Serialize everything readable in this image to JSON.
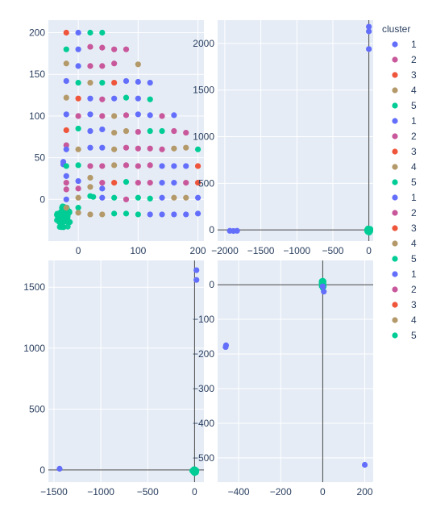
{
  "palette": {
    "1": "#636efa",
    "2": "#c8589b",
    "3": "#ef553b",
    "4": "#b49a6a",
    "5": "#00cc96"
  },
  "plot_bg": "#e5ecf6",
  "legend": {
    "title": "cluster",
    "items": [
      {
        "label": "1",
        "cluster": "1"
      },
      {
        "label": "2",
        "cluster": "2"
      },
      {
        "label": "3",
        "cluster": "3"
      },
      {
        "label": "4",
        "cluster": "4"
      },
      {
        "label": "5",
        "cluster": "5"
      },
      {
        "label": "1",
        "cluster": "1"
      },
      {
        "label": "2",
        "cluster": "2"
      },
      {
        "label": "3",
        "cluster": "3"
      },
      {
        "label": "4",
        "cluster": "4"
      },
      {
        "label": "5",
        "cluster": "5"
      },
      {
        "label": "1",
        "cluster": "1"
      },
      {
        "label": "2",
        "cluster": "2"
      },
      {
        "label": "3",
        "cluster": "3"
      },
      {
        "label": "4",
        "cluster": "4"
      },
      {
        "label": "5",
        "cluster": "5"
      },
      {
        "label": "1",
        "cluster": "1"
      },
      {
        "label": "2",
        "cluster": "2"
      },
      {
        "label": "3",
        "cluster": "3"
      },
      {
        "label": "4",
        "cluster": "4"
      },
      {
        "label": "5",
        "cluster": "5"
      }
    ]
  },
  "chart_data": [
    {
      "type": "scatter",
      "xlim": [
        -50,
        210
      ],
      "ylim": [
        -50,
        215
      ],
      "xticks": [
        0,
        100,
        200
      ],
      "yticks": [
        0,
        50,
        100,
        150,
        200
      ],
      "grid": true,
      "points": [
        [
          -20,
          200,
          3
        ],
        [
          0,
          200,
          1
        ],
        [
          20,
          200,
          5
        ],
        [
          40,
          200,
          5
        ],
        [
          -20,
          180,
          5
        ],
        [
          0,
          180,
          1
        ],
        [
          20,
          183,
          2
        ],
        [
          40,
          182,
          2
        ],
        [
          60,
          180,
          2
        ],
        [
          80,
          180,
          2
        ],
        [
          -20,
          163,
          4
        ],
        [
          0,
          160,
          1
        ],
        [
          20,
          160,
          2
        ],
        [
          40,
          160,
          2
        ],
        [
          60,
          163,
          2
        ],
        [
          100,
          162,
          4
        ],
        [
          -20,
          142,
          1
        ],
        [
          0,
          140,
          5
        ],
        [
          20,
          140,
          4
        ],
        [
          40,
          140,
          5
        ],
        [
          60,
          140,
          3
        ],
        [
          80,
          142,
          1
        ],
        [
          100,
          141,
          1
        ],
        [
          120,
          140,
          1
        ],
        [
          -20,
          122,
          4
        ],
        [
          0,
          121,
          3
        ],
        [
          20,
          121,
          1
        ],
        [
          40,
          120,
          2
        ],
        [
          60,
          121,
          1
        ],
        [
          80,
          122,
          5
        ],
        [
          100,
          121,
          1
        ],
        [
          120,
          120,
          5
        ],
        [
          -20,
          102,
          1
        ],
        [
          0,
          100,
          2
        ],
        [
          20,
          102,
          1
        ],
        [
          40,
          100,
          2
        ],
        [
          60,
          100,
          4
        ],
        [
          80,
          101,
          2
        ],
        [
          100,
          102,
          1
        ],
        [
          120,
          101,
          1
        ],
        [
          140,
          100,
          2
        ],
        [
          160,
          101,
          1
        ],
        [
          -20,
          83,
          3
        ],
        [
          0,
          85,
          5
        ],
        [
          20,
          82,
          1
        ],
        [
          40,
          84,
          1
        ],
        [
          60,
          80,
          4
        ],
        [
          80,
          82,
          4
        ],
        [
          100,
          81,
          2
        ],
        [
          120,
          82,
          5
        ],
        [
          140,
          82,
          5
        ],
        [
          160,
          82,
          2
        ],
        [
          180,
          80,
          2
        ],
        [
          -20,
          65,
          2
        ],
        [
          -20,
          60,
          1
        ],
        [
          0,
          60,
          4
        ],
        [
          20,
          62,
          1
        ],
        [
          40,
          62,
          1
        ],
        [
          60,
          60,
          4
        ],
        [
          80,
          62,
          2
        ],
        [
          100,
          61,
          2
        ],
        [
          120,
          61,
          2
        ],
        [
          140,
          60,
          2
        ],
        [
          160,
          61,
          4
        ],
        [
          180,
          62,
          4
        ],
        [
          200,
          60,
          5
        ],
        [
          -25,
          45,
          1
        ],
        [
          -25,
          42,
          1
        ],
        [
          -20,
          40,
          5
        ],
        [
          0,
          41,
          5
        ],
        [
          20,
          40,
          2
        ],
        [
          40,
          40,
          2
        ],
        [
          60,
          41,
          4
        ],
        [
          80,
          41,
          2
        ],
        [
          100,
          40,
          2
        ],
        [
          120,
          41,
          2
        ],
        [
          140,
          40,
          1
        ],
        [
          160,
          40,
          1
        ],
        [
          180,
          40,
          1
        ],
        [
          200,
          40,
          3
        ],
        [
          -20,
          28,
          1
        ],
        [
          -20,
          20,
          2
        ],
        [
          0,
          22,
          1
        ],
        [
          20,
          26,
          4
        ],
        [
          40,
          20,
          2
        ],
        [
          60,
          20,
          3
        ],
        [
          80,
          21,
          5
        ],
        [
          100,
          20,
          2
        ],
        [
          120,
          20,
          2
        ],
        [
          140,
          20,
          1
        ],
        [
          160,
          20,
          1
        ],
        [
          180,
          20,
          2
        ],
        [
          200,
          20,
          3
        ],
        [
          -20,
          12,
          2
        ],
        [
          0,
          13,
          2
        ],
        [
          20,
          15,
          4
        ],
        [
          40,
          13,
          1
        ],
        [
          -20,
          0,
          1
        ],
        [
          0,
          2,
          4
        ],
        [
          20,
          4,
          5
        ],
        [
          25,
          3,
          5
        ],
        [
          40,
          2,
          1
        ],
        [
          60,
          2,
          5
        ],
        [
          80,
          0,
          2
        ],
        [
          100,
          2,
          5
        ],
        [
          120,
          1,
          5
        ],
        [
          140,
          2,
          1
        ],
        [
          160,
          2,
          4
        ],
        [
          180,
          2,
          4
        ],
        [
          200,
          2,
          1
        ],
        [
          -20,
          -10,
          4
        ],
        [
          0,
          -10,
          5
        ],
        [
          0,
          -16,
          4
        ],
        [
          20,
          -18,
          4
        ],
        [
          40,
          -18,
          4
        ],
        [
          60,
          -17,
          5
        ],
        [
          80,
          -17,
          5
        ],
        [
          100,
          -18,
          5
        ],
        [
          120,
          -18,
          1
        ],
        [
          140,
          -18,
          1
        ],
        [
          160,
          -18,
          1
        ],
        [
          180,
          -18,
          1
        ],
        [
          200,
          -17,
          1
        ]
      ],
      "cluster_blob": {
        "cx": -25,
        "cy": -22,
        "rx": 12,
        "ry": 14,
        "n": 60,
        "color_cluster": "5"
      }
    },
    {
      "type": "scatter",
      "xlim": [
        -2100,
        60
      ],
      "ylim": [
        -120,
        2250
      ],
      "xticks": [
        -2000,
        -1500,
        -1000,
        -500,
        0
      ],
      "yticks": [
        0,
        500,
        1000,
        1500,
        2000
      ],
      "grid": true,
      "zero_lines": true,
      "points": [
        [
          -1930,
          -10,
          1
        ],
        [
          -1880,
          -12,
          1
        ],
        [
          -1830,
          -10,
          1
        ],
        [
          0,
          2180,
          1
        ],
        [
          0,
          2130,
          1
        ],
        [
          0,
          1940,
          1
        ]
      ],
      "cluster_blob": {
        "cx": 0,
        "cy": -5,
        "rx": 25,
        "ry": 25,
        "n": 30,
        "color_cluster": "5"
      }
    },
    {
      "type": "scatter",
      "xlim": [
        -1560,
        100
      ],
      "ylim": [
        -100,
        1720
      ],
      "xticks": [
        -1500,
        -1000,
        -500,
        0
      ],
      "yticks": [
        0,
        500,
        1000,
        1500
      ],
      "grid": true,
      "zero_lines": true,
      "points": [
        [
          -1440,
          10,
          1
        ],
        [
          20,
          1640,
          1
        ],
        [
          20,
          1560,
          1
        ]
      ],
      "cluster_blob": {
        "cx": 0,
        "cy": -10,
        "rx": 25,
        "ry": 18,
        "n": 30,
        "color_cluster": "5"
      }
    },
    {
      "type": "scatter",
      "xlim": [
        -500,
        240
      ],
      "ylim": [
        -570,
        70
      ],
      "xticks": [
        -400,
        -200,
        0,
        200
      ],
      "yticks": [
        0,
        -100,
        -200,
        -300,
        -400,
        -500
      ],
      "grid": true,
      "zero_lines": true,
      "points": [
        [
          -460,
          -175,
          1
        ],
        [
          -462,
          -180,
          1
        ],
        [
          200,
          -520,
          1
        ],
        [
          5,
          -20,
          1
        ],
        [
          0,
          -5,
          1
        ]
      ],
      "cluster_blob": {
        "cx": 0,
        "cy": 2,
        "rx": 6,
        "ry": 12,
        "n": 30,
        "color_cluster": "5"
      }
    }
  ]
}
